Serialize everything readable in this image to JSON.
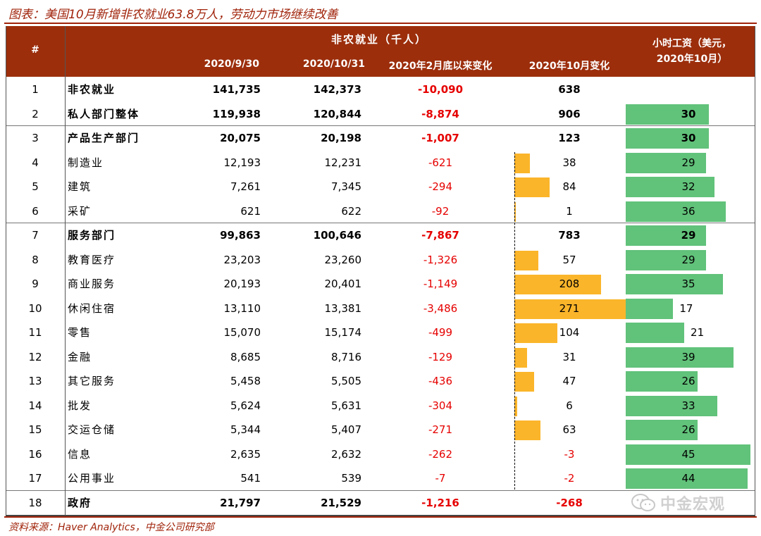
{
  "figure_title": "图表：美国10月新增非农就业63.8万人，劳动力市场继续改善",
  "source": "资料来源：Haver Analytics，中金公司研究部",
  "watermark": "中金宏观",
  "header": {
    "num": "#",
    "group": "非农就业（千人）",
    "col1": "2020/9/30",
    "col2": "2020/10/31",
    "col3": "2020年2月底以来变化",
    "col4": "2020年10月变化",
    "wage": "小时工资（美元，\n2020年10月）"
  },
  "colors": {
    "header_bg": "#9c2e0c",
    "title": "#a0230a",
    "orange_bar": "#fbb52a",
    "green_bar": "#61c27a",
    "negative": "#e60000"
  },
  "rows": [
    {
      "num": "1",
      "name": "非农就业",
      "sep_2020_9": "141,735",
      "oct_2020_10": "142,373",
      "since_feb": "-10,090",
      "oct_change": "638",
      "oct_change_value": 638,
      "wage": "",
      "wage_value": null,
      "bold": true,
      "bar": false
    },
    {
      "num": "2",
      "name": "私人部门整体",
      "sep_2020_9": "119,938",
      "oct_2020_10": "120,844",
      "since_feb": "-8,874",
      "oct_change": "906",
      "oct_change_value": 906,
      "wage": "30",
      "wage_value": 30,
      "bold": true,
      "bar": false
    },
    {
      "num": "3",
      "name": "产品生产部门",
      "sep_2020_9": "20,075",
      "oct_2020_10": "20,198",
      "since_feb": "-1,007",
      "oct_change": "123",
      "oct_change_value": 123,
      "wage": "30",
      "wage_value": 30,
      "bold": true,
      "bar": false
    },
    {
      "num": "4",
      "name": "制造业",
      "sep_2020_9": "12,193",
      "oct_2020_10": "12,231",
      "since_feb": "-621",
      "oct_change": "38",
      "oct_change_value": 38,
      "wage": "29",
      "wage_value": 29,
      "bold": false,
      "bar": true
    },
    {
      "num": "5",
      "name": "建筑",
      "sep_2020_9": "7,261",
      "oct_2020_10": "7,345",
      "since_feb": "-294",
      "oct_change": "84",
      "oct_change_value": 84,
      "wage": "32",
      "wage_value": 32,
      "bold": false,
      "bar": true
    },
    {
      "num": "6",
      "name": "采矿",
      "sep_2020_9": "621",
      "oct_2020_10": "622",
      "since_feb": "-92",
      "oct_change": "1",
      "oct_change_value": 1,
      "wage": "36",
      "wage_value": 36,
      "bold": false,
      "bar": true
    },
    {
      "num": "7",
      "name": "服务部门",
      "sep_2020_9": "99,863",
      "oct_2020_10": "100,646",
      "since_feb": "-7,867",
      "oct_change": "783",
      "oct_change_value": 783,
      "wage": "29",
      "wage_value": 29,
      "bold": true,
      "bar": false
    },
    {
      "num": "8",
      "name": "教育医疗",
      "sep_2020_9": "23,203",
      "oct_2020_10": "23,260",
      "since_feb": "-1,326",
      "oct_change": "57",
      "oct_change_value": 57,
      "wage": "29",
      "wage_value": 29,
      "bold": false,
      "bar": true
    },
    {
      "num": "9",
      "name": "商业服务",
      "sep_2020_9": "20,193",
      "oct_2020_10": "20,401",
      "since_feb": "-1,149",
      "oct_change": "208",
      "oct_change_value": 208,
      "wage": "35",
      "wage_value": 35,
      "bold": false,
      "bar": true
    },
    {
      "num": "10",
      "name": "休闲住宿",
      "sep_2020_9": "13,110",
      "oct_2020_10": "13,381",
      "since_feb": "-3,486",
      "oct_change": "271",
      "oct_change_value": 271,
      "wage": "17",
      "wage_value": 17,
      "bold": false,
      "bar": true
    },
    {
      "num": "11",
      "name": "零售",
      "sep_2020_9": "15,070",
      "oct_2020_10": "15,174",
      "since_feb": "-499",
      "oct_change": "104",
      "oct_change_value": 104,
      "wage": "21",
      "wage_value": 21,
      "bold": false,
      "bar": true
    },
    {
      "num": "12",
      "name": "金融",
      "sep_2020_9": "8,685",
      "oct_2020_10": "8,716",
      "since_feb": "-129",
      "oct_change": "31",
      "oct_change_value": 31,
      "wage": "39",
      "wage_value": 39,
      "bold": false,
      "bar": true
    },
    {
      "num": "13",
      "name": "其它服务",
      "sep_2020_9": "5,458",
      "oct_2020_10": "5,505",
      "since_feb": "-436",
      "oct_change": "47",
      "oct_change_value": 47,
      "wage": "26",
      "wage_value": 26,
      "bold": false,
      "bar": true
    },
    {
      "num": "14",
      "name": "批发",
      "sep_2020_9": "5,624",
      "oct_2020_10": "5,631",
      "since_feb": "-304",
      "oct_change": "6",
      "oct_change_value": 6,
      "wage": "33",
      "wage_value": 33,
      "bold": false,
      "bar": true
    },
    {
      "num": "15",
      "name": "交运仓储",
      "sep_2020_9": "5,344",
      "oct_2020_10": "5,407",
      "since_feb": "-271",
      "oct_change": "63",
      "oct_change_value": 63,
      "wage": "26",
      "wage_value": 26,
      "bold": false,
      "bar": true
    },
    {
      "num": "16",
      "name": "信息",
      "sep_2020_9": "2,635",
      "oct_2020_10": "2,632",
      "since_feb": "-262",
      "oct_change": "-3",
      "oct_change_value": -3,
      "wage": "45",
      "wage_value": 45,
      "bold": false,
      "bar": true
    },
    {
      "num": "17",
      "name": "公用事业",
      "sep_2020_9": "541",
      "oct_2020_10": "539",
      "since_feb": "-7",
      "oct_change": "-2",
      "oct_change_value": -2,
      "wage": "44",
      "wage_value": 44,
      "bold": false,
      "bar": true
    },
    {
      "num": "18",
      "name": "政府",
      "sep_2020_9": "21,797",
      "oct_2020_10": "21,529",
      "since_feb": "-1,216",
      "oct_change": "-268",
      "oct_change_value": -268,
      "wage": "",
      "wage_value": null,
      "bold": true,
      "bar": false
    }
  ]
}
